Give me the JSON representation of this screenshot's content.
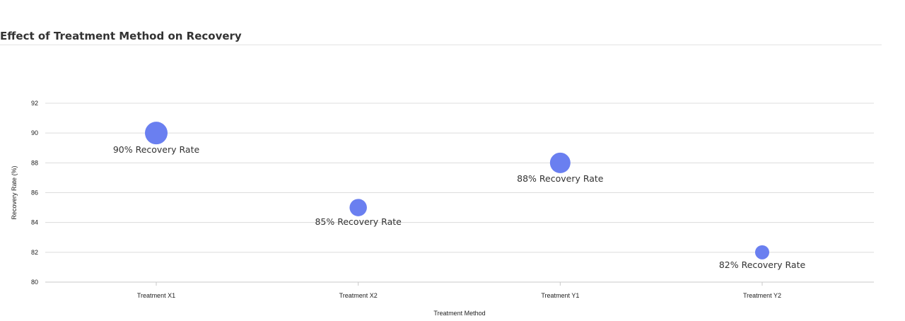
{
  "chart_data": {
    "type": "scatter",
    "title": "Effect of Treatment Method on Recovery",
    "xlabel": "Treatment Method",
    "ylabel": "Recovery Rate (%)",
    "categories": [
      "Treatment X1",
      "Treatment X2",
      "Treatment Y1",
      "Treatment Y2"
    ],
    "series": [
      {
        "values": [
          90,
          85,
          88,
          82
        ],
        "sizes": [
          90,
          85,
          88,
          82
        ],
        "labels": [
          "90% Recovery Rate",
          "85% Recovery Rate",
          "88% Recovery Rate",
          "82% Recovery Rate"
        ],
        "color": "#6a7ff0"
      }
    ],
    "ylim": [
      80,
      92
    ],
    "yticks": [
      80,
      82,
      84,
      86,
      88,
      90,
      92
    ],
    "grid": true,
    "legend": "none",
    "colors": {
      "marker": "#6a7ff0",
      "grid": "#dcdcdc",
      "axis": "#c8c8c8"
    }
  }
}
